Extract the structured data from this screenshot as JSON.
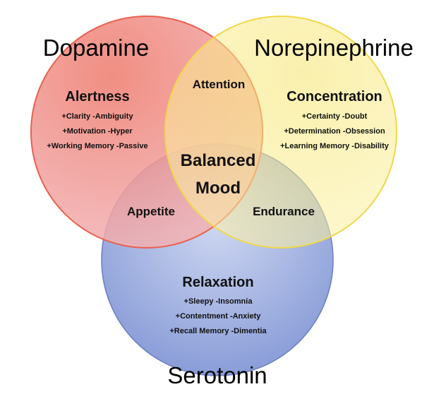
{
  "colors": {
    "dopamine_fill": "#f07a73",
    "dopamine_stroke": "#e8604f",
    "norepinephrine_fill": "#fbea6e",
    "norepinephrine_stroke": "#f0d84a",
    "serotonin_fill": "#7f94d4",
    "serotonin_stroke": "#6a7fc0"
  },
  "sets": {
    "dopamine": "Dopamine",
    "norepinephrine": "Norepinephrine",
    "serotonin": "Serotonin"
  },
  "regions": {
    "dopamine": {
      "title": "Alertness",
      "items": [
        "+Clarity -Ambiguity",
        "+Motivation -Hyper",
        "+Working Memory -Passive"
      ]
    },
    "norepinephrine": {
      "title": "Concentration",
      "items": [
        "+Certainty -Doubt",
        "+Determination -Obsession",
        "+Learning Memory -Disability"
      ]
    },
    "serotonin": {
      "title": "Relaxation",
      "items": [
        "+Sleepy -Insomnia",
        "+Contentment -Anxiety",
        "+Recall Memory -Dimentia"
      ]
    }
  },
  "overlaps": {
    "dopamine_norepinephrine": "Attention",
    "dopamine_serotonin": "Appetite",
    "norepinephrine_serotonin": "Endurance",
    "center_line1": "Balanced",
    "center_line2": "Mood"
  }
}
